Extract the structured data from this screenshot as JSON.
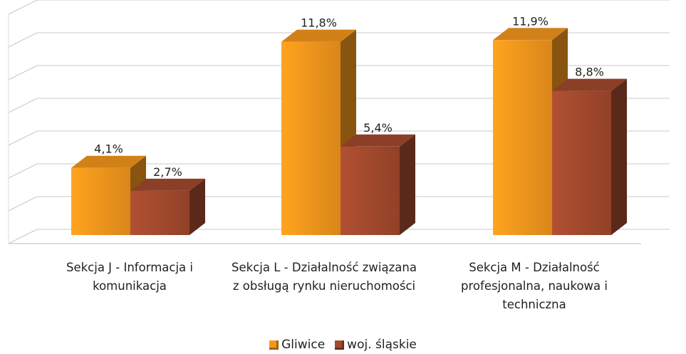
{
  "chart_data": {
    "type": "bar3d",
    "categories": [
      "Sekcja J - Informacja i komunikacja",
      "Sekcja L - Działalność związana z obsługą rynku nieruchomości",
      "Sekcja M - Działalność profesjonalna, naukowa i techniczna"
    ],
    "series": [
      {
        "name": "Gliwice",
        "color": "#f7981d",
        "values": [
          4.1,
          11.8,
          11.9
        ],
        "value_labels": [
          "4,1%",
          "11,8%",
          "11,9%"
        ]
      },
      {
        "name": "woj. śląskie",
        "color": "#a54a2e",
        "values": [
          2.7,
          5.4,
          8.8
        ],
        "value_labels": [
          "2,7%",
          "5,4%",
          "8,8%"
        ]
      }
    ],
    "ylim": [
      0,
      14
    ],
    "yticks": [
      0,
      2,
      4,
      6,
      8,
      10,
      12,
      14
    ],
    "grid": true,
    "legend": "bottom"
  }
}
